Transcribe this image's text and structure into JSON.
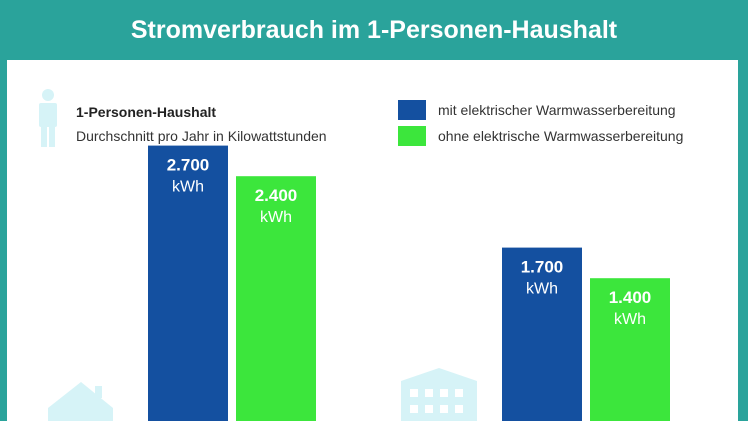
{
  "header": {
    "title": "Stromverbrauch im 1-Personen-Haushalt"
  },
  "legend": {
    "title": "1-Personen-Haushalt",
    "subtitle": "Durchschnitt pro Jahr in Kilowattstunden",
    "icon": "person-icon"
  },
  "colors": {
    "header_bg": "#2aa39b",
    "series_mit": "#1450a0",
    "series_ohne": "#3ce63c",
    "icon": "#d6f3f7"
  },
  "chart_data": {
    "type": "bar",
    "categories": [
      "Haus",
      "Wohnung"
    ],
    "category_icons": [
      "house-icon",
      "apartment-building-icon"
    ],
    "series": [
      {
        "name": "mit elektrischer Warmwasserbereitung",
        "values": [
          2700,
          1700
        ],
        "value_labels": [
          "2.700",
          "1.700"
        ],
        "color": "#1450a0"
      },
      {
        "name": "ohne elektrische Warmwasserbereitung",
        "values": [
          2400,
          1400
        ],
        "value_labels": [
          "2.400",
          "1.400"
        ],
        "color": "#3ce63c"
      }
    ],
    "unit": "kWh",
    "ylim": [
      0,
      2700
    ]
  }
}
